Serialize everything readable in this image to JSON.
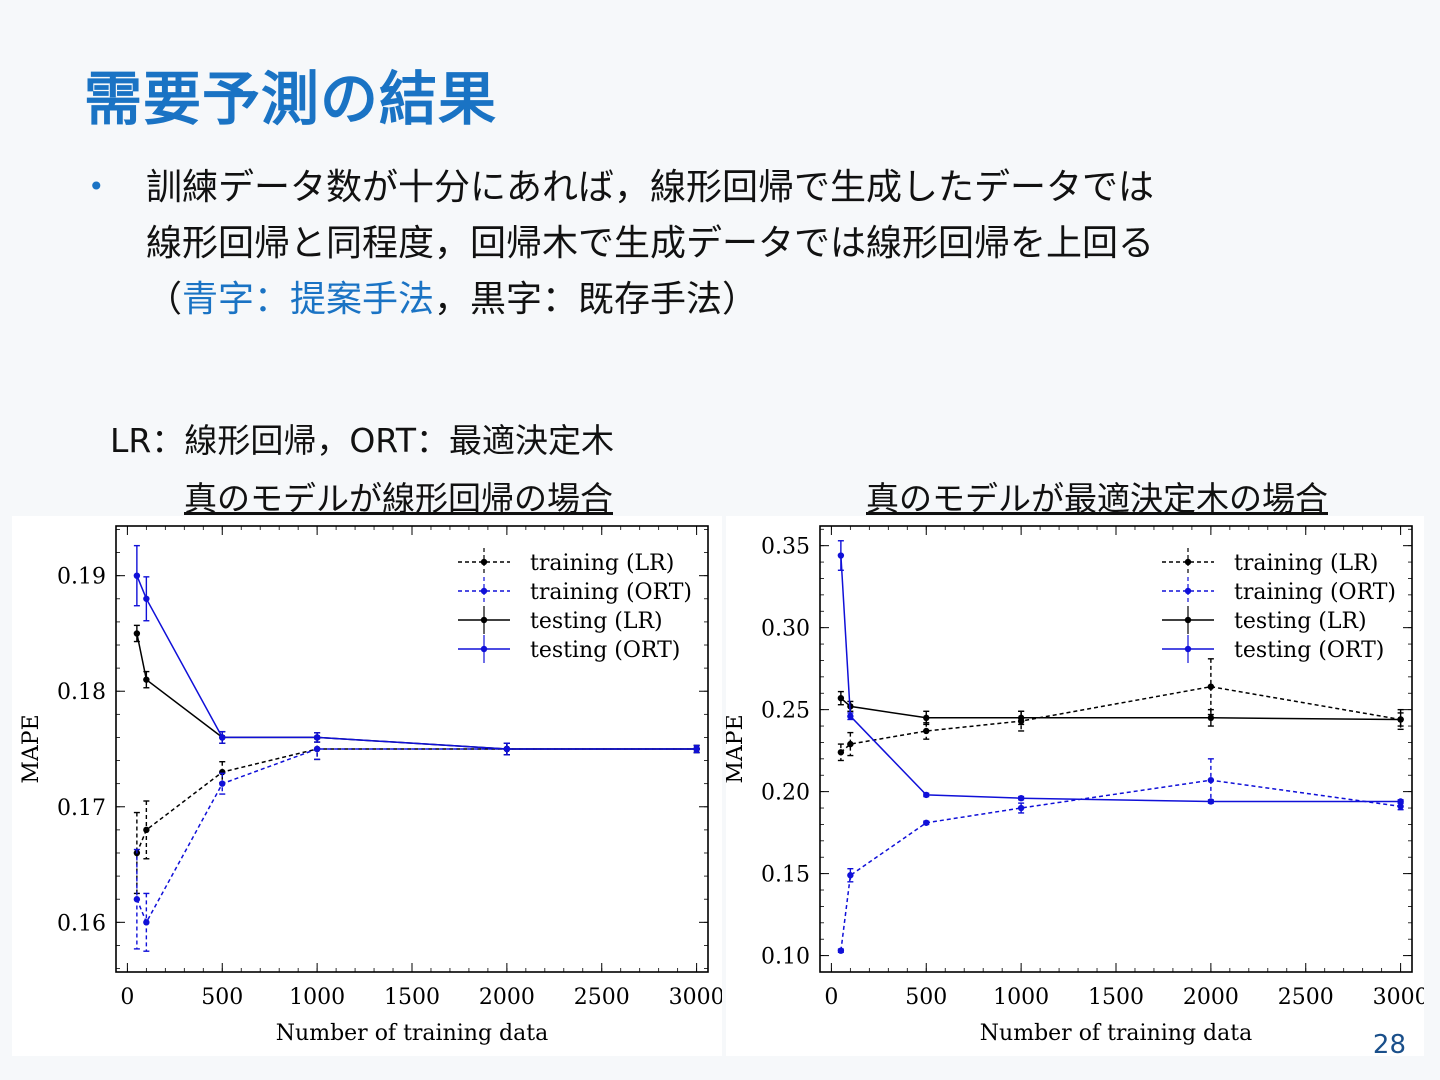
{
  "title": "需要予測の結果",
  "bullet": {
    "line1": "訓練データ数が十分にあれば，線形回帰で生成したデータでは",
    "line2": "線形回帰と同程度，回帰木で生成データでは線形回帰を上回る",
    "line3_open": "（",
    "line3_blue": "青字：提案手法",
    "line3_rest": "，黒字：既存手法）"
  },
  "note": "LR：線形回帰，ORT：最適決定木",
  "caption_left": "真のモデルが線形回帰の場合",
  "caption_right": "真のモデルが最適決定木の場合",
  "page_number": "28",
  "colors": {
    "title": "#1a73c4",
    "proposed": "#1010d8",
    "existing": "#000000"
  },
  "chart_data": [
    {
      "type": "line",
      "xlabel": "Number of training data",
      "ylabel": "MAPE",
      "xlim": [
        -60,
        3060
      ],
      "ylim": [
        0.1557,
        0.1943
      ],
      "xticks": [
        0,
        500,
        1000,
        1500,
        2000,
        2500,
        3000
      ],
      "yticks": [
        0.16,
        0.17,
        0.18,
        0.19
      ],
      "ytick_labels": [
        "0.16",
        "0.17",
        "0.18",
        "0.19"
      ],
      "legend": "top-right",
      "x": [
        50,
        100,
        500,
        1000,
        2000,
        3000
      ],
      "series": [
        {
          "name": "training (LR)",
          "color": "#000000",
          "dash": "dotted",
          "values": [
            0.166,
            0.168,
            0.173,
            0.175,
            0.175,
            0.175
          ],
          "errors": [
            0.0035,
            0.0025,
            0.0009,
            0.0009,
            0.0005,
            0.0003
          ]
        },
        {
          "name": "training (ORT)",
          "color": "#1010d8",
          "dash": "dotted",
          "values": [
            0.162,
            0.16,
            0.172,
            0.175,
            0.175,
            0.175
          ],
          "errors": [
            0.0043,
            0.0025,
            0.0009,
            0.0009,
            0.0005,
            0.0003
          ]
        },
        {
          "name": "testing (LR)",
          "color": "#000000",
          "dash": "solid",
          "values": [
            0.185,
            0.181,
            0.176,
            0.176,
            0.175,
            0.175
          ],
          "errors": [
            0.0007,
            0.0007,
            0.0005,
            0.0004,
            0.0005,
            0.0003
          ]
        },
        {
          "name": "testing (ORT)",
          "color": "#1010d8",
          "dash": "solid",
          "values": [
            0.19,
            0.188,
            0.176,
            0.176,
            0.175,
            0.175
          ],
          "errors": [
            0.0026,
            0.0019,
            0.0005,
            0.0004,
            0.0005,
            0.0003
          ]
        }
      ]
    },
    {
      "type": "line",
      "xlabel": "Number of training data",
      "ylabel": "MAPE",
      "xlim": [
        -60,
        3060
      ],
      "ylim": [
        0.09,
        0.362
      ],
      "xticks": [
        0,
        500,
        1000,
        1500,
        2000,
        2500,
        3000
      ],
      "yticks": [
        0.1,
        0.15,
        0.2,
        0.25,
        0.3,
        0.35
      ],
      "ytick_labels": [
        "0.10",
        "0.15",
        "0.20",
        "0.25",
        "0.30",
        "0.35"
      ],
      "legend": "top-right",
      "x": [
        50,
        100,
        500,
        1000,
        2000,
        3000
      ],
      "series": [
        {
          "name": "training (LR)",
          "color": "#000000",
          "dash": "dotted",
          "values": [
            0.224,
            0.229,
            0.237,
            0.243,
            0.264,
            0.244
          ],
          "errors": [
            0.005,
            0.007,
            0.005,
            0.006,
            0.017,
            0.006
          ]
        },
        {
          "name": "training (ORT)",
          "color": "#1010d8",
          "dash": "dotted",
          "values": [
            0.103,
            0.149,
            0.181,
            0.19,
            0.207,
            0.191
          ],
          "errors": [
            0.001,
            0.004,
            0.001,
            0.003,
            0.013,
            0.002
          ]
        },
        {
          "name": "testing (LR)",
          "color": "#000000",
          "dash": "solid",
          "values": [
            0.257,
            0.252,
            0.245,
            0.245,
            0.245,
            0.244
          ],
          "errors": [
            0.004,
            0.003,
            0.004,
            0.004,
            0.005,
            0.004
          ]
        },
        {
          "name": "testing (ORT)",
          "color": "#1010d8",
          "dash": "solid",
          "values": [
            0.344,
            0.246,
            0.198,
            0.196,
            0.194,
            0.194
          ],
          "errors": [
            0.009,
            0.002,
            0.001,
            0.001,
            0.001,
            0.001
          ]
        }
      ]
    }
  ]
}
